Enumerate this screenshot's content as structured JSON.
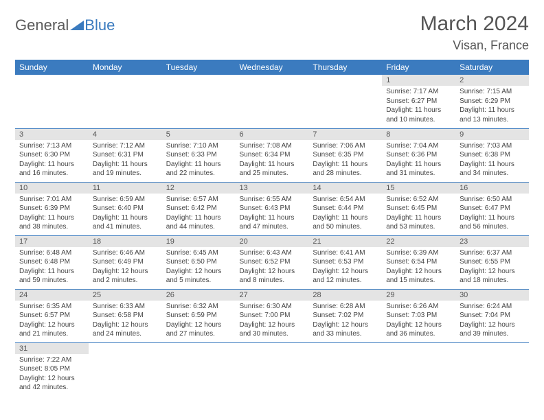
{
  "logo": {
    "text1": "General",
    "text2": "Blue"
  },
  "title": "March 2024",
  "location": "Visan, France",
  "colors": {
    "header_bg": "#3b7bbf",
    "header_text": "#ffffff",
    "daynum_bg": "#e4e4e4",
    "body_text": "#444444",
    "border": "#3b7bbf"
  },
  "weekdays": [
    "Sunday",
    "Monday",
    "Tuesday",
    "Wednesday",
    "Thursday",
    "Friday",
    "Saturday"
  ],
  "weeks": [
    [
      null,
      null,
      null,
      null,
      null,
      {
        "n": "1",
        "sr": "Sunrise: 7:17 AM",
        "ss": "Sunset: 6:27 PM",
        "d1": "Daylight: 11 hours",
        "d2": "and 10 minutes."
      },
      {
        "n": "2",
        "sr": "Sunrise: 7:15 AM",
        "ss": "Sunset: 6:29 PM",
        "d1": "Daylight: 11 hours",
        "d2": "and 13 minutes."
      }
    ],
    [
      {
        "n": "3",
        "sr": "Sunrise: 7:13 AM",
        "ss": "Sunset: 6:30 PM",
        "d1": "Daylight: 11 hours",
        "d2": "and 16 minutes."
      },
      {
        "n": "4",
        "sr": "Sunrise: 7:12 AM",
        "ss": "Sunset: 6:31 PM",
        "d1": "Daylight: 11 hours",
        "d2": "and 19 minutes."
      },
      {
        "n": "5",
        "sr": "Sunrise: 7:10 AM",
        "ss": "Sunset: 6:33 PM",
        "d1": "Daylight: 11 hours",
        "d2": "and 22 minutes."
      },
      {
        "n": "6",
        "sr": "Sunrise: 7:08 AM",
        "ss": "Sunset: 6:34 PM",
        "d1": "Daylight: 11 hours",
        "d2": "and 25 minutes."
      },
      {
        "n": "7",
        "sr": "Sunrise: 7:06 AM",
        "ss": "Sunset: 6:35 PM",
        "d1": "Daylight: 11 hours",
        "d2": "and 28 minutes."
      },
      {
        "n": "8",
        "sr": "Sunrise: 7:04 AM",
        "ss": "Sunset: 6:36 PM",
        "d1": "Daylight: 11 hours",
        "d2": "and 31 minutes."
      },
      {
        "n": "9",
        "sr": "Sunrise: 7:03 AM",
        "ss": "Sunset: 6:38 PM",
        "d1": "Daylight: 11 hours",
        "d2": "and 34 minutes."
      }
    ],
    [
      {
        "n": "10",
        "sr": "Sunrise: 7:01 AM",
        "ss": "Sunset: 6:39 PM",
        "d1": "Daylight: 11 hours",
        "d2": "and 38 minutes."
      },
      {
        "n": "11",
        "sr": "Sunrise: 6:59 AM",
        "ss": "Sunset: 6:40 PM",
        "d1": "Daylight: 11 hours",
        "d2": "and 41 minutes."
      },
      {
        "n": "12",
        "sr": "Sunrise: 6:57 AM",
        "ss": "Sunset: 6:42 PM",
        "d1": "Daylight: 11 hours",
        "d2": "and 44 minutes."
      },
      {
        "n": "13",
        "sr": "Sunrise: 6:55 AM",
        "ss": "Sunset: 6:43 PM",
        "d1": "Daylight: 11 hours",
        "d2": "and 47 minutes."
      },
      {
        "n": "14",
        "sr": "Sunrise: 6:54 AM",
        "ss": "Sunset: 6:44 PM",
        "d1": "Daylight: 11 hours",
        "d2": "and 50 minutes."
      },
      {
        "n": "15",
        "sr": "Sunrise: 6:52 AM",
        "ss": "Sunset: 6:45 PM",
        "d1": "Daylight: 11 hours",
        "d2": "and 53 minutes."
      },
      {
        "n": "16",
        "sr": "Sunrise: 6:50 AM",
        "ss": "Sunset: 6:47 PM",
        "d1": "Daylight: 11 hours",
        "d2": "and 56 minutes."
      }
    ],
    [
      {
        "n": "17",
        "sr": "Sunrise: 6:48 AM",
        "ss": "Sunset: 6:48 PM",
        "d1": "Daylight: 11 hours",
        "d2": "and 59 minutes."
      },
      {
        "n": "18",
        "sr": "Sunrise: 6:46 AM",
        "ss": "Sunset: 6:49 PM",
        "d1": "Daylight: 12 hours",
        "d2": "and 2 minutes."
      },
      {
        "n": "19",
        "sr": "Sunrise: 6:45 AM",
        "ss": "Sunset: 6:50 PM",
        "d1": "Daylight: 12 hours",
        "d2": "and 5 minutes."
      },
      {
        "n": "20",
        "sr": "Sunrise: 6:43 AM",
        "ss": "Sunset: 6:52 PM",
        "d1": "Daylight: 12 hours",
        "d2": "and 8 minutes."
      },
      {
        "n": "21",
        "sr": "Sunrise: 6:41 AM",
        "ss": "Sunset: 6:53 PM",
        "d1": "Daylight: 12 hours",
        "d2": "and 12 minutes."
      },
      {
        "n": "22",
        "sr": "Sunrise: 6:39 AM",
        "ss": "Sunset: 6:54 PM",
        "d1": "Daylight: 12 hours",
        "d2": "and 15 minutes."
      },
      {
        "n": "23",
        "sr": "Sunrise: 6:37 AM",
        "ss": "Sunset: 6:55 PM",
        "d1": "Daylight: 12 hours",
        "d2": "and 18 minutes."
      }
    ],
    [
      {
        "n": "24",
        "sr": "Sunrise: 6:35 AM",
        "ss": "Sunset: 6:57 PM",
        "d1": "Daylight: 12 hours",
        "d2": "and 21 minutes."
      },
      {
        "n": "25",
        "sr": "Sunrise: 6:33 AM",
        "ss": "Sunset: 6:58 PM",
        "d1": "Daylight: 12 hours",
        "d2": "and 24 minutes."
      },
      {
        "n": "26",
        "sr": "Sunrise: 6:32 AM",
        "ss": "Sunset: 6:59 PM",
        "d1": "Daylight: 12 hours",
        "d2": "and 27 minutes."
      },
      {
        "n": "27",
        "sr": "Sunrise: 6:30 AM",
        "ss": "Sunset: 7:00 PM",
        "d1": "Daylight: 12 hours",
        "d2": "and 30 minutes."
      },
      {
        "n": "28",
        "sr": "Sunrise: 6:28 AM",
        "ss": "Sunset: 7:02 PM",
        "d1": "Daylight: 12 hours",
        "d2": "and 33 minutes."
      },
      {
        "n": "29",
        "sr": "Sunrise: 6:26 AM",
        "ss": "Sunset: 7:03 PM",
        "d1": "Daylight: 12 hours",
        "d2": "and 36 minutes."
      },
      {
        "n": "30",
        "sr": "Sunrise: 6:24 AM",
        "ss": "Sunset: 7:04 PM",
        "d1": "Daylight: 12 hours",
        "d2": "and 39 minutes."
      }
    ],
    [
      {
        "n": "31",
        "sr": "Sunrise: 7:22 AM",
        "ss": "Sunset: 8:05 PM",
        "d1": "Daylight: 12 hours",
        "d2": "and 42 minutes."
      },
      null,
      null,
      null,
      null,
      null,
      null
    ]
  ]
}
